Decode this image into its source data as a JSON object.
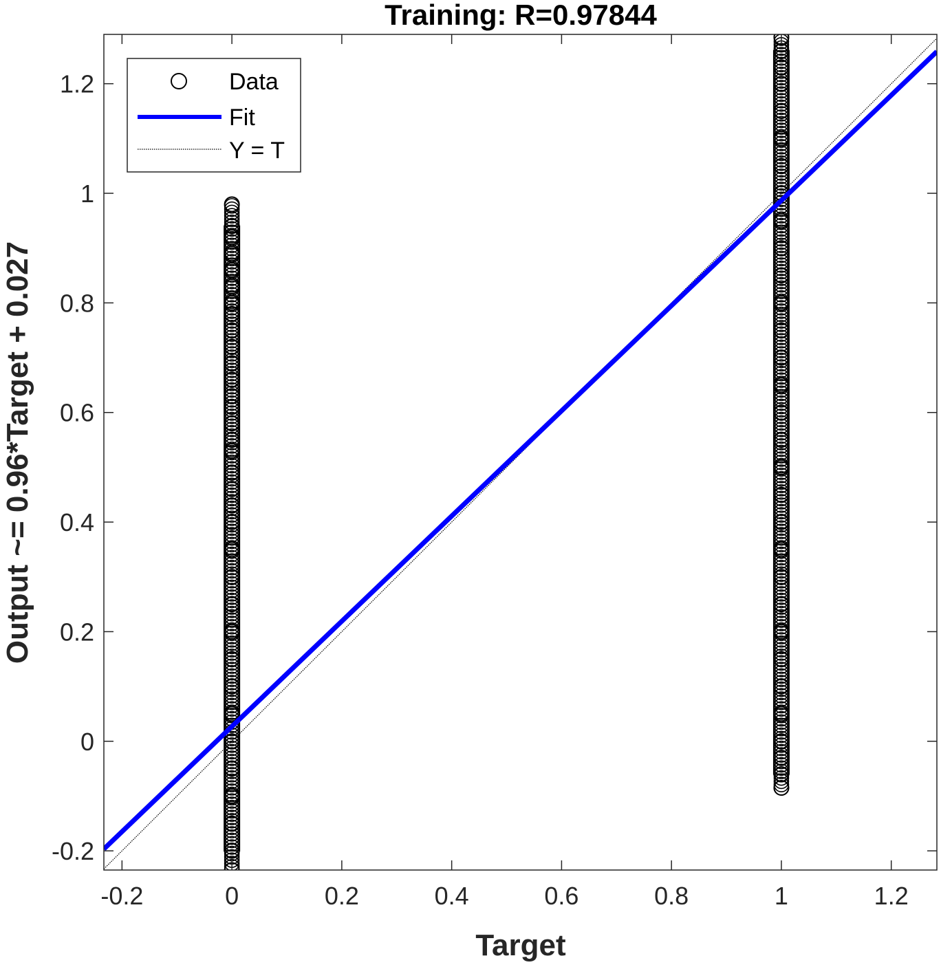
{
  "chart_data": {
    "type": "scatter",
    "title": "Training: R=0.97844",
    "xlabel": "Target",
    "ylabel": "Output ~= 0.96*Target + 0.027",
    "xlim": [
      -0.233,
      1.283
    ],
    "ylim": [
      -0.235,
      1.29
    ],
    "x_ticks": [
      -0.2,
      0,
      0.2,
      0.4,
      0.6,
      0.8,
      1,
      1.2
    ],
    "y_ticks": [
      -0.2,
      0,
      0.2,
      0.4,
      0.6,
      0.8,
      1,
      1.2
    ],
    "x_tick_labels": [
      "-0.2",
      "0",
      "0.2",
      "0.4",
      "0.6",
      "0.8",
      "1",
      "1.2"
    ],
    "y_tick_labels": [
      "-0.2",
      "0",
      "0.2",
      "0.4",
      "0.6",
      "0.8",
      "1",
      "1.2"
    ],
    "grid": false,
    "legend_position": "top-left",
    "legend": [
      {
        "label": "Data",
        "marker": "circle",
        "color": "#000000"
      },
      {
        "label": "Fit",
        "line": "solid",
        "color": "#0000ff"
      },
      {
        "label": "Y = T",
        "line": "dotted",
        "color": "#000000"
      }
    ],
    "series": [
      {
        "name": "Data",
        "marker": "circle",
        "color": "#000000",
        "points": [
          {
            "x": 0,
            "y": -0.235
          },
          {
            "x": 0,
            "y": -0.2
          },
          {
            "x": 0,
            "y": -0.15
          },
          {
            "x": 0,
            "y": -0.1
          },
          {
            "x": 0,
            "y": -0.05
          },
          {
            "x": 0,
            "y": 0
          },
          {
            "x": 0,
            "y": 0.05
          },
          {
            "x": 0,
            "y": 0.1
          },
          {
            "x": 0,
            "y": 0.15
          },
          {
            "x": 0,
            "y": 0.2
          },
          {
            "x": 0,
            "y": 0.25
          },
          {
            "x": 0,
            "y": 0.3
          },
          {
            "x": 0,
            "y": 0.35
          },
          {
            "x": 0,
            "y": 0.4
          },
          {
            "x": 0,
            "y": 0.43
          },
          {
            "x": 0,
            "y": 0.46
          },
          {
            "x": 0,
            "y": 0.49
          },
          {
            "x": 0,
            "y": 0.53
          },
          {
            "x": 0,
            "y": 0.55
          },
          {
            "x": 0,
            "y": 0.58
          },
          {
            "x": 0,
            "y": 0.61
          },
          {
            "x": 0,
            "y": 0.63
          },
          {
            "x": 0,
            "y": 0.66
          },
          {
            "x": 0,
            "y": 0.69
          },
          {
            "x": 0,
            "y": 0.72
          },
          {
            "x": 0,
            "y": 0.75
          },
          {
            "x": 0,
            "y": 0.78
          },
          {
            "x": 0,
            "y": 0.8
          },
          {
            "x": 0,
            "y": 0.83
          },
          {
            "x": 0,
            "y": 0.86
          },
          {
            "x": 0,
            "y": 0.89
          },
          {
            "x": 0,
            "y": 0.92
          },
          {
            "x": 0,
            "y": 0.94
          },
          {
            "x": 0,
            "y": 0.98
          },
          {
            "x": 1,
            "y": -0.085
          },
          {
            "x": 1,
            "y": -0.06
          },
          {
            "x": 1,
            "y": -0.03
          },
          {
            "x": 1,
            "y": 0
          },
          {
            "x": 1,
            "y": 0.05
          },
          {
            "x": 1,
            "y": 0.1
          },
          {
            "x": 1,
            "y": 0.15
          },
          {
            "x": 1,
            "y": 0.2
          },
          {
            "x": 1,
            "y": 0.25
          },
          {
            "x": 1,
            "y": 0.3
          },
          {
            "x": 1,
            "y": 0.35
          },
          {
            "x": 1,
            "y": 0.4
          },
          {
            "x": 1,
            "y": 0.45
          },
          {
            "x": 1,
            "y": 0.5
          },
          {
            "x": 1,
            "y": 0.55
          },
          {
            "x": 1,
            "y": 0.6
          },
          {
            "x": 1,
            "y": 0.65
          },
          {
            "x": 1,
            "y": 0.7
          },
          {
            "x": 1,
            "y": 0.75
          },
          {
            "x": 1,
            "y": 0.8
          },
          {
            "x": 1,
            "y": 0.85
          },
          {
            "x": 1,
            "y": 0.9
          },
          {
            "x": 1,
            "y": 0.95
          },
          {
            "x": 1,
            "y": 1
          },
          {
            "x": 1,
            "y": 1.05
          },
          {
            "x": 1,
            "y": 1.1
          },
          {
            "x": 1,
            "y": 1.15
          },
          {
            "x": 1,
            "y": 1.2
          },
          {
            "x": 1,
            "y": 1.23
          },
          {
            "x": 1,
            "y": 1.26
          },
          {
            "x": 1,
            "y": 1.285
          }
        ]
      },
      {
        "name": "Fit",
        "type": "line",
        "color": "#0000ff",
        "slope": 0.96,
        "intercept": 0.027
      },
      {
        "name": "Y = T",
        "type": "line",
        "color": "#000000",
        "slope": 1,
        "intercept": 0
      }
    ]
  }
}
